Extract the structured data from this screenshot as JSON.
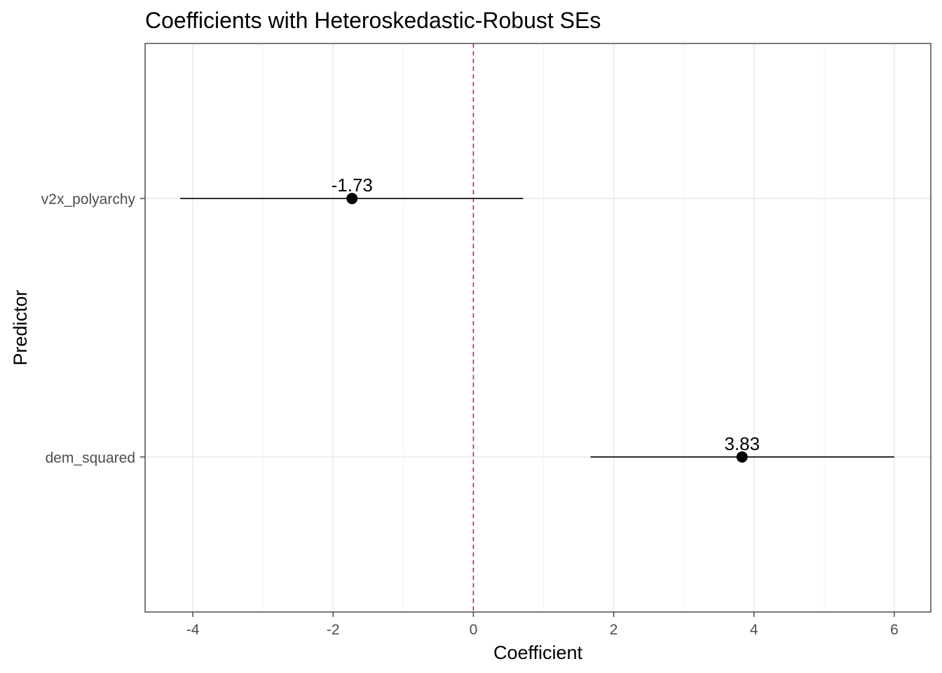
{
  "chart_data": {
    "type": "scatter",
    "title": "Coefficients with Heteroskedastic-Robust SEs",
    "xlabel": "Coefficient",
    "ylabel": "Predictor",
    "xlim": [
      -4.68,
      6.52
    ],
    "x_ticks": [
      -4,
      -2,
      0,
      2,
      4,
      6
    ],
    "x_tick_labels": [
      "-4",
      "-2",
      "0",
      "2",
      "4",
      "6"
    ],
    "categories": [
      "v2x_polyarchy",
      "dem_squared"
    ],
    "points": [
      {
        "predictor": "v2x_polyarchy",
        "estimate": -1.73,
        "ci_low": -4.18,
        "ci_high": 0.71,
        "label": "-1.73"
      },
      {
        "predictor": "dem_squared",
        "estimate": 3.83,
        "ci_low": 1.67,
        "ci_high": 6.0,
        "label": "3.83"
      }
    ],
    "reference_line": {
      "x": 0,
      "color": "#e41a1c",
      "style": "dashed"
    },
    "grid": true,
    "legend": "none"
  }
}
